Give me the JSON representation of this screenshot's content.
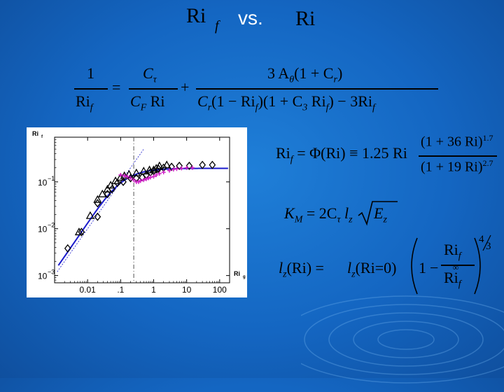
{
  "title": {
    "left_sym": "Ri",
    "left_sub": "f",
    "vs": "vs.",
    "right_sym": "Ri"
  },
  "eq1": {
    "lhs_num": "1",
    "lhs_den": "Ri",
    "lhs_den_sub": "f",
    "eq_sign": "=",
    "t1_num": "C",
    "t1_num_sub": "τ",
    "t1_den_a": "C",
    "t1_den_a_sub": "F",
    "t1_den_b": "Ri",
    "plus": "+",
    "t2_num": "3 A",
    "t2_num_sub": "θ",
    "t2_num_rest": "(1 + C",
    "t2_num_rest_sub": "r",
    "t2_num_end": ")",
    "t2_den": "C",
    "t2_den_sub": "r",
    "t2_den_rest1": "(1 − Ri",
    "t2_den_rest1_sub": "f",
    "t2_den_rest2": ")(1 + C",
    "t2_den_rest2_sub": "3",
    "t2_den_rest3": " Ri",
    "t2_den_rest3_sub": "f",
    "t2_den_rest4": ") − 3Ri",
    "t2_den_rest4_sub": "f"
  },
  "eq2": {
    "lhs": "Ri",
    "lhs_sub": "f",
    "mid": " = Φ(Ri) ≡ 1.25 Ri",
    "num": "(1 + 36 Ri)",
    "num_exp": "1.7",
    "den": "(1 + 19 Ri)",
    "den_exp": "2.7"
  },
  "eq3": {
    "lhs": "K",
    "lhs_sub": "M",
    "rhs_a": " = 2C",
    "rhs_a_sub": "τ",
    "rhs_b": "l",
    "rhs_b_sub": "z",
    "root_body": "E",
    "root_sub": "z"
  },
  "eq4": {
    "lhs": "l",
    "lhs_sub": "z",
    "lhs_arg": "(Ri) =",
    "rhs": "l",
    "rhs_sub": "z",
    "rhs_arg": "(Ri=0)",
    "one": "1",
    "minus": "−",
    "frac_num": "Ri",
    "frac_num_sub": "f",
    "frac_den": "Ri",
    "frac_den_sub": "f",
    "frac_den_sup": "∞",
    "exp_num": "4",
    "exp_den": "3"
  },
  "chart_data": {
    "type": "scatter",
    "xlabel": "Ri",
    "xlabel_sub": "g",
    "ylabel": "Ri",
    "ylabel_sub": "f",
    "xscale": "log",
    "yscale": "log",
    "xlim": [
      0.001,
      200
    ],
    "ylim": [
      0.0007,
      0.9
    ],
    "xticks": [
      "0.01",
      ".1",
      "1",
      "10",
      "100"
    ],
    "xtick_values": [
      0.01,
      0.1,
      1,
      10,
      100
    ],
    "yticks": [
      "10",
      "10",
      "10"
    ],
    "ytick_exps": [
      "−1",
      "−2",
      "−3"
    ],
    "ytick_values": [
      0.1,
      0.01,
      0.001
    ],
    "vline_x": 0.25,
    "colors": {
      "model": "#1a1acc",
      "diamond": "#000000",
      "triangle": "#000000",
      "plus": "#d020c8",
      "dashed": "#555555"
    },
    "series": [
      {
        "marker": "diamond",
        "x": [
          0.0025,
          0.0065,
          0.02,
          0.02,
          0.04,
          0.055,
          0.08,
          0.12,
          0.2,
          0.3,
          0.45,
          0.6,
          0.8,
          1.0,
          1.4,
          2,
          3.5,
          6,
          12,
          30,
          60
        ],
        "y": [
          0.0038,
          0.0085,
          0.018,
          0.035,
          0.055,
          0.07,
          0.095,
          0.1,
          0.12,
          0.12,
          0.125,
          0.14,
          0.16,
          0.17,
          0.19,
          0.2,
          0.21,
          0.22,
          0.22,
          0.23,
          0.23
        ]
      },
      {
        "marker": "triangle",
        "x": [
          0.0055,
          0.012,
          0.02,
          0.028,
          0.04,
          0.05,
          0.07,
          0.1,
          0.13,
          0.18,
          0.3,
          0.5,
          0.75,
          1.0,
          1.2,
          1.5,
          2.5
        ],
        "y": [
          0.0085,
          0.019,
          0.042,
          0.055,
          0.07,
          0.085,
          0.105,
          0.125,
          0.135,
          0.145,
          0.155,
          0.17,
          0.18,
          0.18,
          0.195,
          0.22,
          0.23
        ]
      },
      {
        "marker": "plus",
        "x": [
          0.1,
          0.13,
          0.16,
          0.2,
          0.25,
          0.3,
          0.35,
          0.4,
          0.5,
          0.6,
          0.7,
          0.8,
          1.0,
          1.2,
          1.5,
          2,
          3,
          4,
          5,
          7,
          10,
          15
        ],
        "y": [
          0.14,
          0.135,
          0.13,
          0.12,
          0.11,
          0.1,
          0.1,
          0.105,
          0.11,
          0.115,
          0.12,
          0.125,
          0.13,
          0.14,
          0.15,
          0.16,
          0.175,
          0.185,
          0.19,
          0.195,
          0.2,
          0.2
        ]
      }
    ]
  }
}
